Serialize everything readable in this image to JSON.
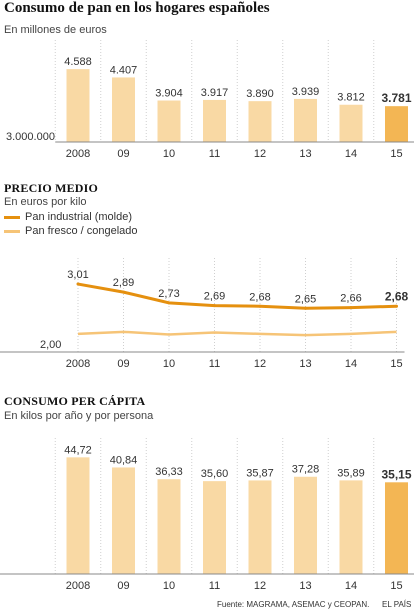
{
  "title": "Consumo de pan en los hogares españoles",
  "colors": {
    "bar": "#f9d9a4",
    "bar_highlight": "#f3b654",
    "line_industrial": "#e5900f",
    "line_fresco": "#f6c477",
    "grid": "#cfcfcf",
    "axis": "#888888"
  },
  "chart_data": [
    {
      "type": "bar",
      "title": "",
      "subtitle": "En millones de euros",
      "categories": [
        "2008",
        "09",
        "10",
        "11",
        "12",
        "13",
        "14",
        "15"
      ],
      "values": [
        4588,
        4407,
        3904,
        3917,
        3890,
        3939,
        3812,
        3781
      ],
      "value_labels": [
        "4.588",
        "4.407",
        "3.904",
        "3.917",
        "3.890",
        "3.939",
        "3.812",
        "3.781"
      ],
      "baseline_label": "3.000.000",
      "ylim": [
        3000,
        4700
      ],
      "highlight_index": 7
    },
    {
      "type": "line",
      "title": "PRECIO MEDIO",
      "subtitle": "En euros por kilo",
      "categories": [
        "2008",
        "09",
        "10",
        "11",
        "12",
        "13",
        "14",
        "15"
      ],
      "series": [
        {
          "name": "Pan industrial (molde)",
          "values": [
            3.01,
            2.89,
            2.73,
            2.69,
            2.68,
            2.65,
            2.66,
            2.68
          ],
          "value_labels": [
            "3,01",
            "2,89",
            "2,73",
            "2,69",
            "2,68",
            "2,65",
            "2,66",
            "2,68"
          ]
        },
        {
          "name": "Pan fresco / congelado",
          "values": [
            2.27,
            2.3,
            2.26,
            2.29,
            2.27,
            2.25,
            2.27,
            2.3
          ]
        }
      ],
      "baseline_label": "2,00",
      "ylim": [
        2.0,
        3.1
      ]
    },
    {
      "type": "bar",
      "title": "CONSUMO PER CÁPITA",
      "subtitle": "En kilos por año y por persona",
      "categories": [
        "2008",
        "09",
        "10",
        "11",
        "12",
        "13",
        "14",
        "15"
      ],
      "values": [
        44.72,
        40.84,
        36.33,
        35.6,
        35.87,
        37.28,
        35.89,
        35.15
      ],
      "value_labels": [
        "44,72",
        "40,84",
        "36,33",
        "35,60",
        "35,87",
        "37,28",
        "35,89",
        "35,15"
      ],
      "ylim": [
        0,
        46
      ],
      "highlight_index": 7
    }
  ],
  "footer": {
    "source": "Fuente: MAGRAMA, ASEMAC y CEOPAN.",
    "publisher": "EL PAÍS"
  }
}
